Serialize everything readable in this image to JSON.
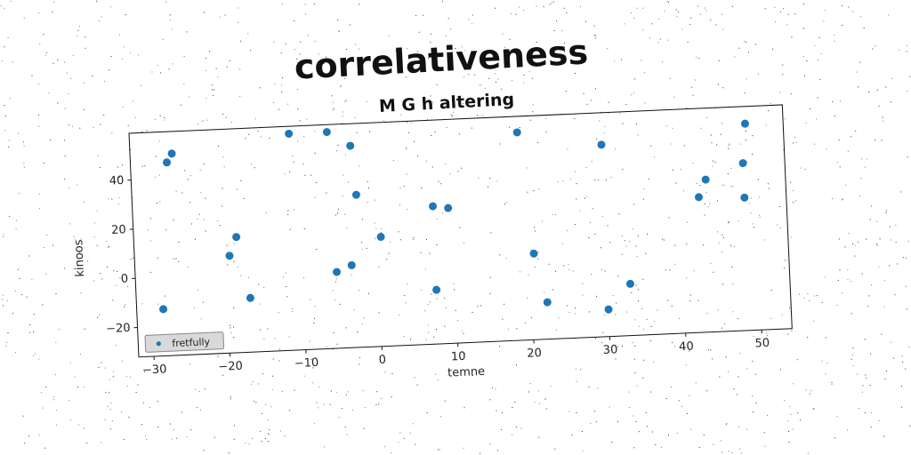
{
  "chart_data": {
    "type": "scatter",
    "title": "correlativeness",
    "subtitle": "M G h altering",
    "xlabel": "temne",
    "ylabel": "kinoos",
    "xlim": [
      -32,
      54
    ],
    "ylim": [
      -32,
      59
    ],
    "xticks": [
      -30,
      -20,
      -10,
      0,
      10,
      20,
      30,
      40,
      50
    ],
    "yticks": [
      -20,
      0,
      20,
      40
    ],
    "xtick_labels": [
      "−30",
      "−20",
      "−10",
      "0",
      "10",
      "20",
      "30",
      "40",
      "50"
    ],
    "ytick_labels": [
      "−20",
      "0",
      "20",
      "40"
    ],
    "grid": false,
    "legend_position": "lower-left",
    "color": "#1f77b4",
    "series": [
      {
        "name": "fretfully",
        "points": [
          [
            -26.5,
            50
          ],
          [
            -27.2,
            46.5
          ],
          [
            -11,
            56
          ],
          [
            -6,
            56
          ],
          [
            -3,
            50
          ],
          [
            -2.5,
            30
          ],
          [
            -18.5,
            15
          ],
          [
            -19.5,
            7.5
          ],
          [
            -17,
            -10
          ],
          [
            -28.5,
            -13
          ],
          [
            -5.5,
            -1
          ],
          [
            -3.5,
            1.5
          ],
          [
            0.5,
            12.5
          ],
          [
            7.5,
            24
          ],
          [
            9.5,
            23
          ],
          [
            7.5,
            -10
          ],
          [
            19,
            52.5
          ],
          [
            20.5,
            3
          ],
          [
            22,
            -17
          ],
          [
            30,
            46
          ],
          [
            30,
            -21
          ],
          [
            33,
            -11
          ],
          [
            42.5,
            23
          ],
          [
            43.5,
            30
          ],
          [
            48.5,
            36
          ],
          [
            49,
            52
          ],
          [
            48.5,
            22
          ]
        ]
      }
    ]
  }
}
